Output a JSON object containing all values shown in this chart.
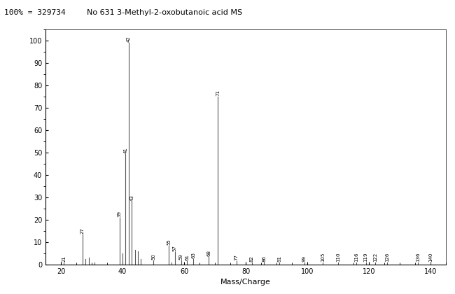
{
  "title": "No 631 3-Methyl-2-oxobutanoic acid MS",
  "header_label": "100% = 329734",
  "xlabel": "Mass/Charge",
  "ylabel": "",
  "xlim": [
    15,
    145
  ],
  "ylim": [
    0,
    105
  ],
  "yticks": [
    0,
    10,
    20,
    30,
    40,
    50,
    60,
    70,
    80,
    90,
    100
  ],
  "xticks": [
    20,
    40,
    60,
    80,
    100,
    120,
    140
  ],
  "peaks": [
    {
      "mz": 21,
      "intensity": 1.0
    },
    {
      "mz": 27,
      "intensity": 13.5
    },
    {
      "mz": 28,
      "intensity": 2.5
    },
    {
      "mz": 29,
      "intensity": 3.0
    },
    {
      "mz": 31,
      "intensity": 1.0
    },
    {
      "mz": 39,
      "intensity": 21.0
    },
    {
      "mz": 40,
      "intensity": 5.0
    },
    {
      "mz": 41,
      "intensity": 49.5
    },
    {
      "mz": 42,
      "intensity": 99.0
    },
    {
      "mz": 43,
      "intensity": 28.0
    },
    {
      "mz": 44,
      "intensity": 6.5
    },
    {
      "mz": 45,
      "intensity": 6.0
    },
    {
      "mz": 46,
      "intensity": 2.5
    },
    {
      "mz": 50,
      "intensity": 2.0
    },
    {
      "mz": 55,
      "intensity": 8.5
    },
    {
      "mz": 57,
      "intensity": 5.5
    },
    {
      "mz": 59,
      "intensity": 2.0
    },
    {
      "mz": 61,
      "intensity": 1.5
    },
    {
      "mz": 56,
      "intensity": 1.0
    },
    {
      "mz": 63,
      "intensity": 2.5
    },
    {
      "mz": 68,
      "intensity": 3.5
    },
    {
      "mz": 71,
      "intensity": 75.0
    },
    {
      "mz": 77,
      "intensity": 1.5
    },
    {
      "mz": 82,
      "intensity": 1.0
    },
    {
      "mz": 86,
      "intensity": 1.0
    },
    {
      "mz": 91,
      "intensity": 1.0
    },
    {
      "mz": 99,
      "intensity": 1.0
    },
    {
      "mz": 105,
      "intensity": 1.0
    },
    {
      "mz": 110,
      "intensity": 1.0
    },
    {
      "mz": 116,
      "intensity": 1.0
    },
    {
      "mz": 119,
      "intensity": 1.0
    },
    {
      "mz": 122,
      "intensity": 1.0
    },
    {
      "mz": 126,
      "intensity": 1.0
    },
    {
      "mz": 136,
      "intensity": 1.0
    },
    {
      "mz": 140,
      "intensity": 1.0
    }
  ],
  "labeled_peaks": [
    {
      "mz": 21,
      "label": "21"
    },
    {
      "mz": 27,
      "label": "27"
    },
    {
      "mz": 39,
      "label": "39"
    },
    {
      "mz": 41,
      "label": "41"
    },
    {
      "mz": 42,
      "label": "42"
    },
    {
      "mz": 43,
      "label": "43"
    },
    {
      "mz": 55,
      "label": "55"
    },
    {
      "mz": 57,
      "label": "57"
    },
    {
      "mz": 71,
      "label": "71"
    },
    {
      "mz": 77,
      "label": "77"
    },
    {
      "mz": 82,
      "label": "82"
    },
    {
      "mz": 86,
      "label": "86"
    },
    {
      "mz": 91,
      "label": "91"
    },
    {
      "mz": 99,
      "label": "99"
    },
    {
      "mz": 105,
      "label": "105"
    },
    {
      "mz": 110,
      "label": "110"
    },
    {
      "mz": 116,
      "label": "116"
    },
    {
      "mz": 119,
      "label": "119"
    },
    {
      "mz": 122,
      "label": "122"
    },
    {
      "mz": 126,
      "label": "126"
    },
    {
      "mz": 136,
      "label": "136"
    },
    {
      "mz": 140,
      "label": "140"
    },
    {
      "mz": 50,
      "label": "50"
    },
    {
      "mz": 59,
      "label": "59"
    },
    {
      "mz": 61,
      "label": "61"
    },
    {
      "mz": 63,
      "label": "63"
    },
    {
      "mz": 68,
      "label": "68"
    }
  ],
  "line_color": "#555555",
  "background_color": "#ffffff",
  "title_fontsize": 8,
  "label_fontsize": 5,
  "axis_fontsize": 7,
  "header_fontsize": 8
}
